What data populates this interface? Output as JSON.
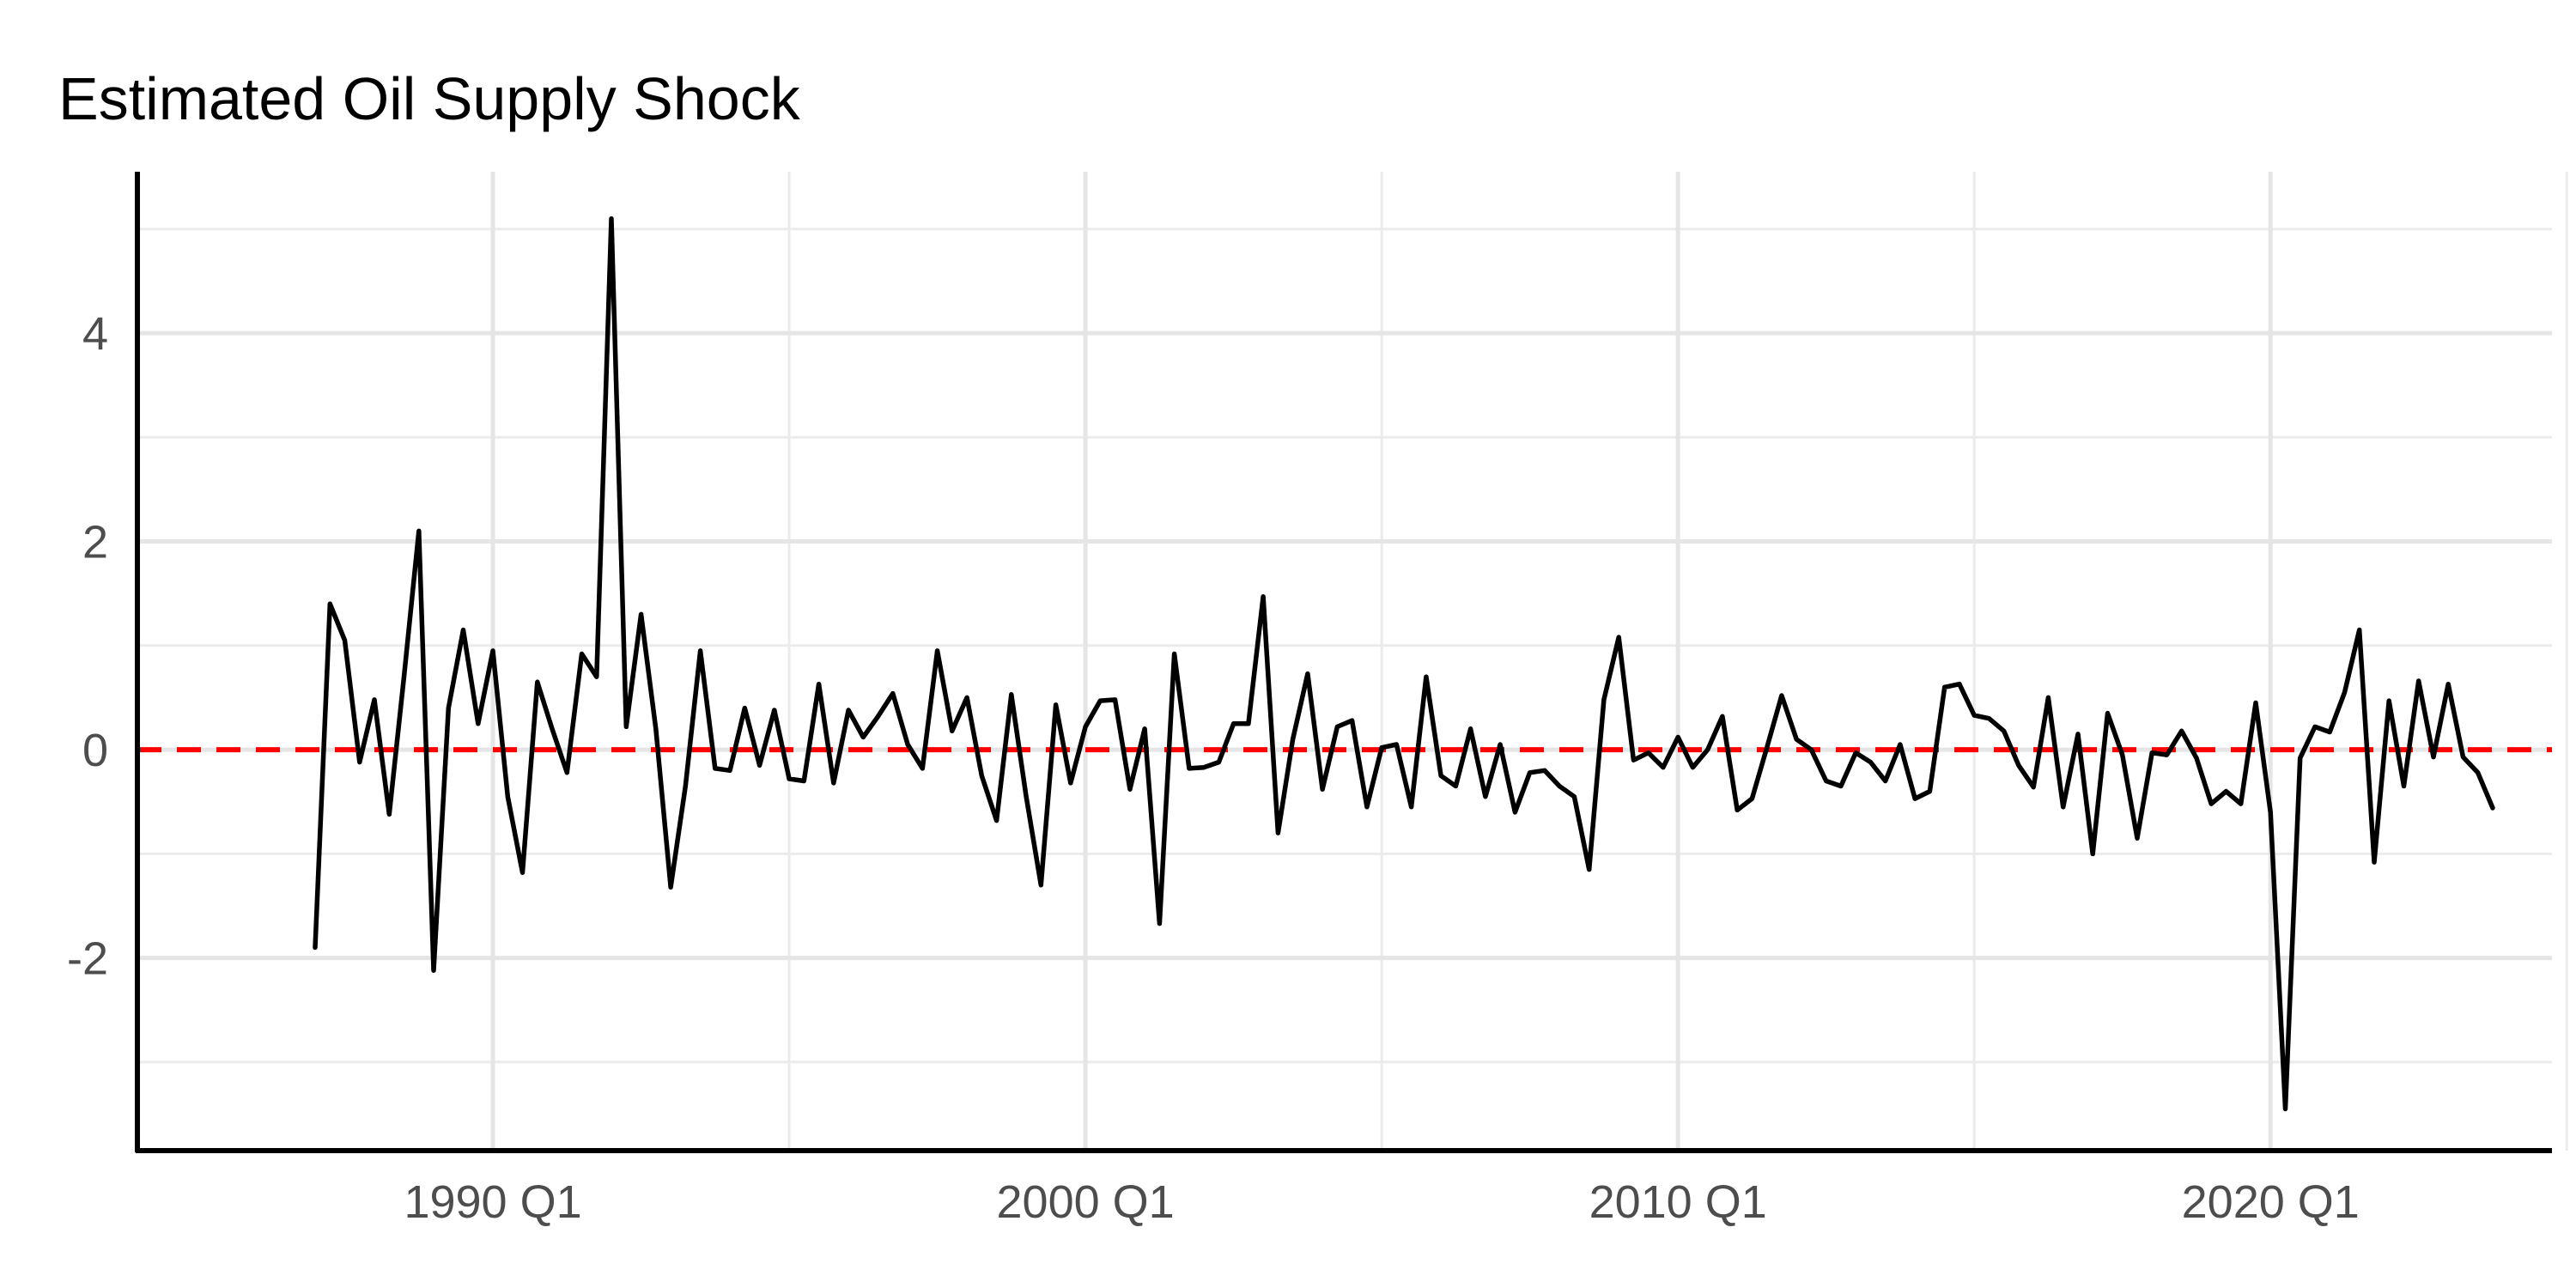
{
  "chart_data": {
    "type": "line",
    "title": "Estimated Oil Supply Shock",
    "xlabel": "",
    "ylabel": "",
    "x_ticks": [
      "1990 Q1",
      "2000 Q1",
      "2010 Q1",
      "2020 Q1"
    ],
    "y_ticks": [
      "-2",
      "0",
      "2",
      "4"
    ],
    "xlim": [
      1984.0,
      2024.75
    ],
    "ylim": [
      -3.85,
      5.55
    ],
    "x_tick_values": [
      1990,
      2000,
      2010,
      2020
    ],
    "x_minor_ticks": [
      1995,
      2005,
      2015,
      2025
    ],
    "y_tick_values": [
      -2,
      0,
      2,
      4
    ],
    "y_minor_ticks": [
      -3,
      -1,
      1,
      3,
      5
    ],
    "grid": true,
    "reference_line": {
      "y": 0,
      "style": "dashed",
      "color": "#ff0000"
    },
    "line_color": "#000000",
    "series": [
      {
        "x_start": 1987.0,
        "x_step": 0.25,
        "values": [
          -1.9,
          1.4,
          1.05,
          -0.12,
          0.48,
          -0.62,
          0.7,
          2.1,
          -2.12,
          0.4,
          1.15,
          0.25,
          0.95,
          -0.45,
          -1.18,
          0.65,
          0.2,
          -0.22,
          0.92,
          0.7,
          5.1,
          0.22,
          1.3,
          0.2,
          -1.32,
          -0.35,
          0.95,
          -0.18,
          -0.2,
          0.4,
          -0.15,
          0.38,
          -0.28,
          -0.3,
          0.63,
          -0.32,
          0.38,
          0.12,
          0.32,
          0.54,
          0.05,
          -0.18,
          0.95,
          0.18,
          0.5,
          -0.25,
          -0.68,
          0.53,
          -0.45,
          -1.3,
          0.43,
          -0.32,
          0.22,
          0.47,
          0.48,
          -0.38,
          0.2,
          -1.67,
          0.92,
          -0.18,
          -0.17,
          -0.12,
          0.25,
          0.25,
          1.47,
          -0.8,
          0.1,
          0.73,
          -0.38,
          0.22,
          0.28,
          -0.55,
          0.02,
          0.05,
          -0.55,
          0.7,
          -0.25,
          -0.35,
          0.2,
          -0.45,
          0.05,
          -0.6,
          -0.22,
          -0.2,
          -0.35,
          -0.45,
          -1.15,
          0.48,
          1.08,
          -0.1,
          -0.03,
          -0.17,
          0.12,
          -0.17,
          0.0,
          0.32,
          -0.58,
          -0.47,
          0.02,
          0.52,
          0.1,
          0.0,
          -0.3,
          -0.35,
          -0.03,
          -0.12,
          -0.3,
          0.05,
          -0.47,
          -0.4,
          0.6,
          0.63,
          0.33,
          0.3,
          0.18,
          -0.15,
          -0.36,
          0.5,
          -0.55,
          0.15,
          -1.0,
          0.35,
          -0.05,
          -0.85,
          -0.03,
          -0.05,
          0.18,
          -0.08,
          -0.52,
          -0.4,
          -0.52,
          0.45,
          -0.6,
          -3.45,
          -0.08,
          0.22,
          0.17,
          0.55,
          1.15,
          -1.08,
          0.47,
          -0.35,
          0.66,
          -0.07,
          0.63,
          -0.07,
          -0.22,
          -0.56
        ]
      }
    ]
  }
}
